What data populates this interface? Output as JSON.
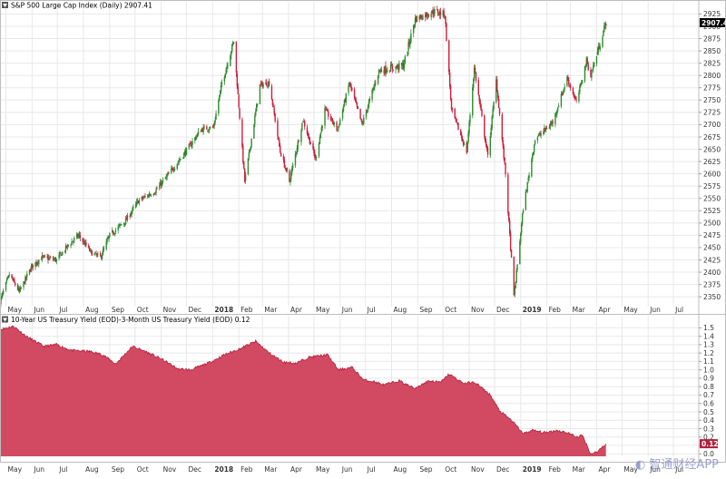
{
  "colors": {
    "up": "#2e8b2e",
    "down": "#cc1f3c",
    "area_fill": "#d24a62",
    "area_line": "#b3213d",
    "grid": "#e8e8e8",
    "text": "#333333",
    "price_box": "#000000"
  },
  "watermark": {
    "text": "智通财经APP",
    "icon": "zhitong-logo-icon"
  },
  "chart_data": [
    {
      "type": "candlestick",
      "title": "S&P 500 Large Cap Index (Daily) 2907.41",
      "last_value_label": "2907.41",
      "ylim": [
        2330,
        2935
      ],
      "yticks": [
        2350,
        2375,
        2400,
        2425,
        2450,
        2475,
        2500,
        2525,
        2550,
        2575,
        2600,
        2625,
        2650,
        2675,
        2700,
        2725,
        2750,
        2775,
        2800,
        2825,
        2850,
        2875,
        2900,
        2925
      ],
      "time_range": [
        "2017-04-24",
        "2019-07-31"
      ],
      "x_ticks": [
        {
          "label": "May",
          "date": "2017-05-01"
        },
        {
          "label": "Jun",
          "date": "2017-06-01"
        },
        {
          "label": "Jul",
          "date": "2017-07-01"
        },
        {
          "label": "Aug",
          "date": "2017-08-01"
        },
        {
          "label": "Sep",
          "date": "2017-09-01"
        },
        {
          "label": "Oct",
          "date": "2017-10-01"
        },
        {
          "label": "Nov",
          "date": "2017-11-01"
        },
        {
          "label": "Dec",
          "date": "2017-12-01"
        },
        {
          "label": "2018",
          "date": "2018-01-01",
          "bold": true
        },
        {
          "label": "Feb",
          "date": "2018-02-01"
        },
        {
          "label": "Mar",
          "date": "2018-03-01"
        },
        {
          "label": "Apr",
          "date": "2018-04-01"
        },
        {
          "label": "May",
          "date": "2018-05-01"
        },
        {
          "label": "Jun",
          "date": "2018-06-01"
        },
        {
          "label": "Jul",
          "date": "2018-07-01"
        },
        {
          "label": "Aug",
          "date": "2018-08-01"
        },
        {
          "label": "Sep",
          "date": "2018-09-01"
        },
        {
          "label": "Oct",
          "date": "2018-10-01"
        },
        {
          "label": "Nov",
          "date": "2018-11-01"
        },
        {
          "label": "Dec",
          "date": "2018-12-01"
        },
        {
          "label": "2019",
          "date": "2019-01-01",
          "bold": true
        },
        {
          "label": "Feb",
          "date": "2019-02-01"
        },
        {
          "label": "Mar",
          "date": "2019-03-01"
        },
        {
          "label": "Apr",
          "date": "2019-04-01"
        },
        {
          "label": "May",
          "date": "2019-05-01"
        },
        {
          "label": "Jun",
          "date": "2019-06-01"
        },
        {
          "label": "Jul",
          "date": "2019-07-01"
        }
      ],
      "price_path": [
        [
          "2017-04-24",
          2340
        ],
        [
          "2017-05-05",
          2395
        ],
        [
          "2017-05-17",
          2360
        ],
        [
          "2017-05-31",
          2410
        ],
        [
          "2017-06-12",
          2430
        ],
        [
          "2017-06-30",
          2425
        ],
        [
          "2017-07-14",
          2455
        ],
        [
          "2017-07-26",
          2475
        ],
        [
          "2017-08-10",
          2440
        ],
        [
          "2017-08-21",
          2430
        ],
        [
          "2017-09-01",
          2475
        ],
        [
          "2017-09-20",
          2505
        ],
        [
          "2017-10-05",
          2545
        ],
        [
          "2017-10-25",
          2565
        ],
        [
          "2017-11-08",
          2595
        ],
        [
          "2017-11-30",
          2645
        ],
        [
          "2017-12-18",
          2690
        ],
        [
          "2018-01-02",
          2695
        ],
        [
          "2018-01-12",
          2785
        ],
        [
          "2018-01-26",
          2870
        ],
        [
          "2018-02-05",
          2650
        ],
        [
          "2018-02-08",
          2585
        ],
        [
          "2018-02-26",
          2780
        ],
        [
          "2018-03-09",
          2785
        ],
        [
          "2018-03-22",
          2645
        ],
        [
          "2018-04-02",
          2585
        ],
        [
          "2018-04-18",
          2710
        ],
        [
          "2018-05-03",
          2630
        ],
        [
          "2018-05-14",
          2730
        ],
        [
          "2018-05-29",
          2690
        ],
        [
          "2018-06-12",
          2785
        ],
        [
          "2018-06-27",
          2700
        ],
        [
          "2018-07-17",
          2810
        ],
        [
          "2018-08-01",
          2815
        ],
        [
          "2018-08-15",
          2820
        ],
        [
          "2018-08-29",
          2915
        ],
        [
          "2018-09-20",
          2930
        ],
        [
          "2018-10-03",
          2925
        ],
        [
          "2018-10-11",
          2730
        ],
        [
          "2018-10-29",
          2645
        ],
        [
          "2018-11-07",
          2815
        ],
        [
          "2018-11-23",
          2635
        ],
        [
          "2018-12-03",
          2790
        ],
        [
          "2018-12-14",
          2600
        ],
        [
          "2018-12-24",
          2350
        ],
        [
          "2019-01-04",
          2530
        ],
        [
          "2019-01-18",
          2670
        ],
        [
          "2019-02-08",
          2705
        ],
        [
          "2019-02-25",
          2795
        ],
        [
          "2019-03-08",
          2745
        ],
        [
          "2019-03-20",
          2830
        ],
        [
          "2019-03-25",
          2800
        ],
        [
          "2019-04-12",
          2908
        ]
      ]
    },
    {
      "type": "area",
      "title": "10-Year US Treasury Yield (EOD)-3-Month US Treasury Yield (EOD) 0.12",
      "last_value_label": "0.12",
      "ylim": [
        -0.03,
        1.58
      ],
      "yticks": [
        0.0,
        0.1,
        0.2,
        0.3,
        0.4,
        0.5,
        0.6,
        0.7,
        0.8,
        0.9,
        1.0,
        1.1,
        1.2,
        1.3,
        1.4,
        1.5
      ],
      "ytick_labels": [
        "0.0",
        "0.1",
        "0.2",
        "0.3",
        "0.4",
        "0.5",
        "0.6",
        "0.7",
        "0.8",
        "0.9",
        "1.0",
        "1.1",
        "1.2",
        "1.3",
        "1.4",
        "1.5"
      ],
      "values": [
        [
          "2017-04-24",
          1.48
        ],
        [
          "2017-05-10",
          1.52
        ],
        [
          "2017-05-25",
          1.4
        ],
        [
          "2017-06-15",
          1.28
        ],
        [
          "2017-06-30",
          1.3
        ],
        [
          "2017-07-18",
          1.23
        ],
        [
          "2017-08-08",
          1.22
        ],
        [
          "2017-08-24",
          1.18
        ],
        [
          "2017-09-08",
          1.07
        ],
        [
          "2017-09-28",
          1.28
        ],
        [
          "2017-10-13",
          1.22
        ],
        [
          "2017-11-03",
          1.12
        ],
        [
          "2017-11-21",
          1.01
        ],
        [
          "2017-12-06",
          1.0
        ],
        [
          "2017-12-29",
          1.09
        ],
        [
          "2018-01-15",
          1.18
        ],
        [
          "2018-02-02",
          1.25
        ],
        [
          "2018-02-21",
          1.34
        ],
        [
          "2018-03-09",
          1.2
        ],
        [
          "2018-03-26",
          1.09
        ],
        [
          "2018-04-10",
          1.08
        ],
        [
          "2018-04-25",
          1.15
        ],
        [
          "2018-05-17",
          1.18
        ],
        [
          "2018-05-30",
          1.0
        ],
        [
          "2018-06-15",
          1.03
        ],
        [
          "2018-06-29",
          0.88
        ],
        [
          "2018-07-11",
          0.86
        ],
        [
          "2018-07-23",
          0.82
        ],
        [
          "2018-08-10",
          0.87
        ],
        [
          "2018-08-28",
          0.78
        ],
        [
          "2018-09-14",
          0.87
        ],
        [
          "2018-09-28",
          0.85
        ],
        [
          "2018-10-08",
          0.95
        ],
        [
          "2018-10-25",
          0.84
        ],
        [
          "2018-11-08",
          0.85
        ],
        [
          "2018-11-26",
          0.7
        ],
        [
          "2018-12-07",
          0.51
        ],
        [
          "2018-12-21",
          0.4
        ],
        [
          "2019-01-04",
          0.24
        ],
        [
          "2019-01-15",
          0.28
        ],
        [
          "2019-01-30",
          0.25
        ],
        [
          "2019-02-12",
          0.28
        ],
        [
          "2019-02-26",
          0.25
        ],
        [
          "2019-03-08",
          0.2
        ],
        [
          "2019-03-15",
          0.22
        ],
        [
          "2019-03-25",
          0.0
        ],
        [
          "2019-04-01",
          0.02
        ],
        [
          "2019-04-12",
          0.12
        ]
      ]
    }
  ]
}
